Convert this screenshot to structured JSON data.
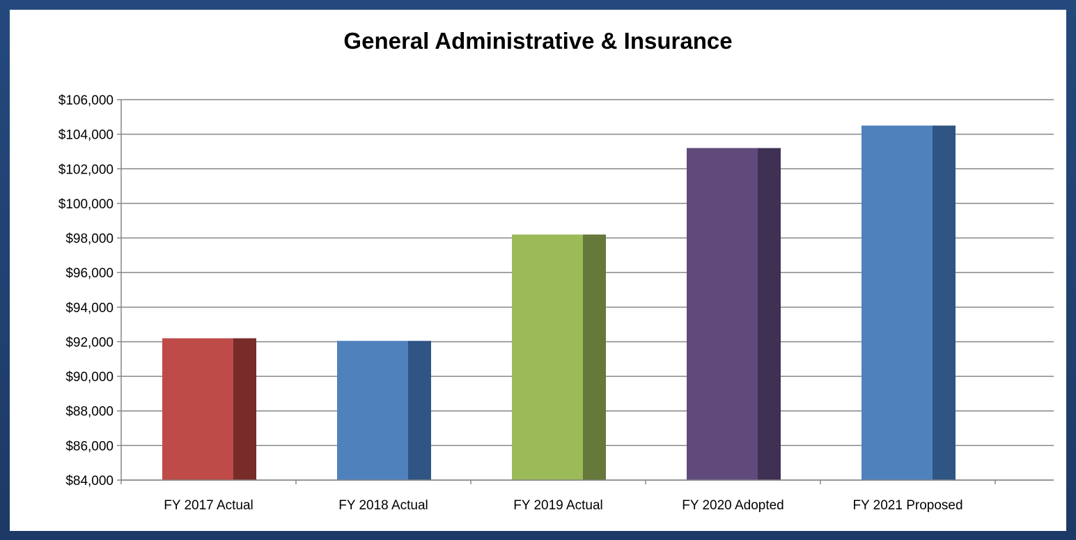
{
  "chart_data": {
    "type": "bar",
    "title": "General Administrative & Insurance",
    "categories": [
      "FY 2017 Actual",
      "FY 2018 Actual",
      "FY 2019 Actual",
      "FY 2020 Adopted",
      "FY 2021 Proposed"
    ],
    "values": [
      92200,
      92050,
      98200,
      103200,
      104500
    ],
    "bar_colors": [
      "#be4b48",
      "#4f81bd",
      "#9bbb59",
      "#604a7b",
      "#4f81bd"
    ],
    "bar_side_colors": [
      "#772c2a",
      "#2f5584",
      "#66783a",
      "#3f3153",
      "#2f5584"
    ],
    "ylim": [
      84000,
      106000
    ],
    "y_ticks": [
      "$84,000",
      "$86,000",
      "$88,000",
      "$90,000",
      "$92,000",
      "$94,000",
      "$96,000",
      "$98,000",
      "$100,000",
      "$102,000",
      "$104,000",
      "$106,000"
    ],
    "y_tick_values": [
      84000,
      86000,
      88000,
      90000,
      92000,
      94000,
      96000,
      98000,
      100000,
      102000,
      104000,
      106000
    ],
    "grid": true,
    "xlabel": "",
    "ylabel": ""
  }
}
